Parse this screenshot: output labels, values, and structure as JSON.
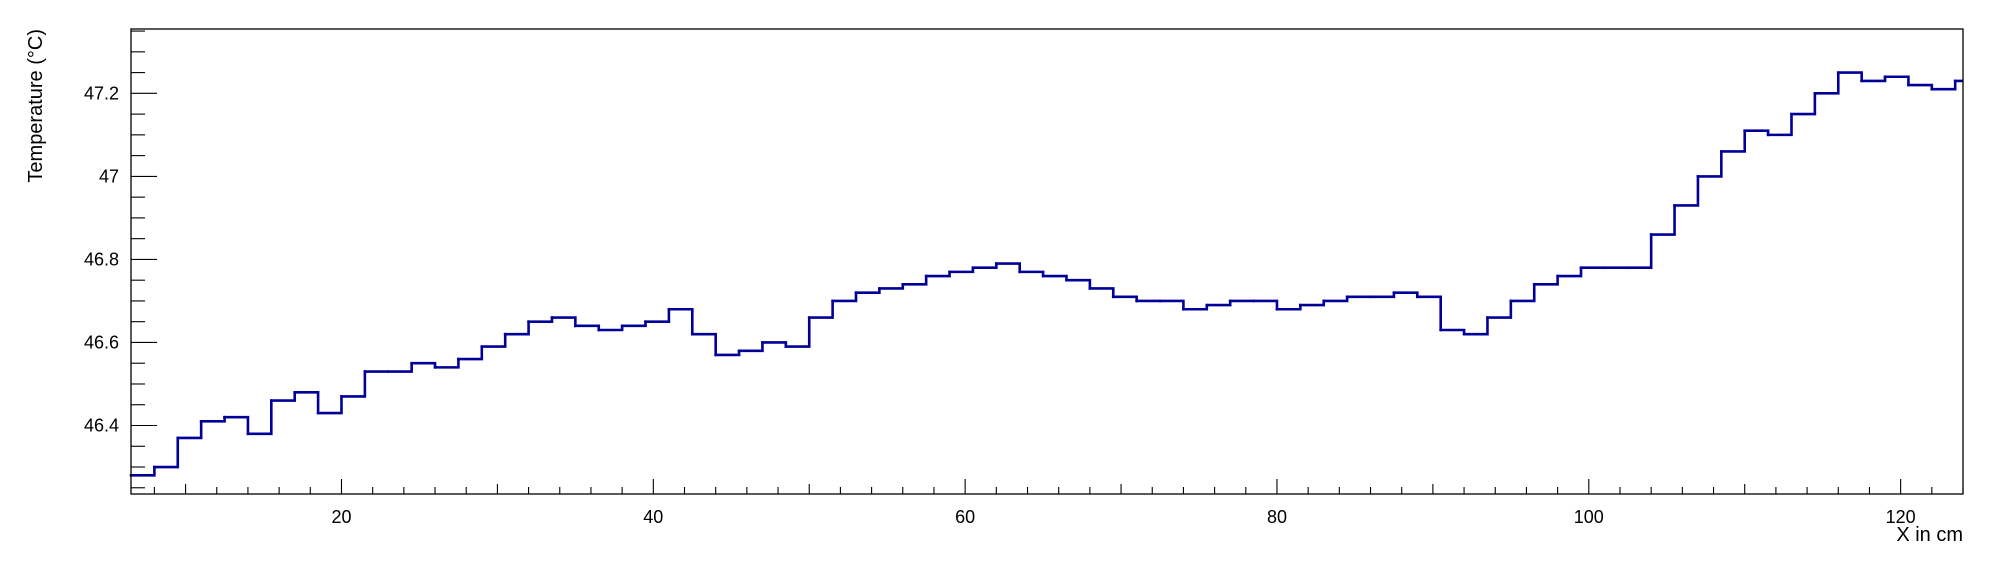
{
  "chart_data": {
    "type": "line",
    "style": "step",
    "title": "",
    "xlabel": "X in cm",
    "ylabel": "Temperature (°C)",
    "xlim": [
      6.5,
      124
    ],
    "ylim": [
      46.235,
      47.355
    ],
    "x_major_ticks": [
      20,
      40,
      60,
      80,
      100,
      120
    ],
    "x_minor_step": 2,
    "y_major_ticks": [
      46.4,
      46.6,
      46.8,
      47,
      47.2
    ],
    "y_tick_labels": [
      "46.4",
      "46.6",
      "46.8",
      "47",
      "47.2"
    ],
    "y_minor_step": 0.05,
    "grid": false,
    "series": [
      {
        "color": "#000099",
        "x": [
          6.5,
          8,
          9.5,
          11,
          12.5,
          14,
          15.5,
          17,
          18.5,
          20,
          21.5,
          23,
          24.5,
          26,
          27.5,
          29,
          30.5,
          32,
          33.5,
          35,
          36.5,
          38,
          39.5,
          41,
          42.5,
          44,
          45.5,
          47,
          48.5,
          50,
          51.5,
          53,
          54.5,
          56,
          57.5,
          59,
          60.5,
          62,
          63.5,
          65,
          66.5,
          68,
          69.5,
          71,
          72.5,
          74,
          75.5,
          77,
          78.5,
          80,
          81.5,
          83,
          84.5,
          86,
          87.5,
          89,
          90.5,
          92,
          93.5,
          95,
          96.5,
          98,
          99.5,
          101,
          102.5,
          104,
          105.5,
          107,
          108.5,
          110,
          111.5,
          113,
          114.5,
          116,
          117.5,
          119,
          120.5,
          122,
          123.5
        ],
        "y": [
          46.28,
          46.3,
          46.37,
          46.41,
          46.42,
          46.38,
          46.46,
          46.48,
          46.43,
          46.47,
          46.53,
          46.53,
          46.55,
          46.54,
          46.56,
          46.59,
          46.62,
          46.65,
          46.66,
          46.64,
          46.63,
          46.64,
          46.65,
          46.68,
          46.62,
          46.57,
          46.58,
          46.6,
          46.59,
          46.66,
          46.7,
          46.72,
          46.73,
          46.74,
          46.76,
          46.77,
          46.78,
          46.79,
          46.77,
          46.76,
          46.75,
          46.73,
          46.71,
          46.7,
          46.7,
          46.68,
          46.69,
          46.7,
          46.7,
          46.68,
          46.69,
          46.7,
          46.71,
          46.71,
          46.72,
          46.71,
          46.63,
          46.62,
          46.66,
          46.7,
          46.74,
          46.76,
          46.78,
          46.78,
          46.78,
          46.86,
          46.93,
          47.0,
          47.06,
          47.11,
          47.1,
          47.15,
          47.2,
          47.25,
          47.23,
          47.24,
          47.22,
          47.21,
          47.23
        ]
      }
    ]
  }
}
